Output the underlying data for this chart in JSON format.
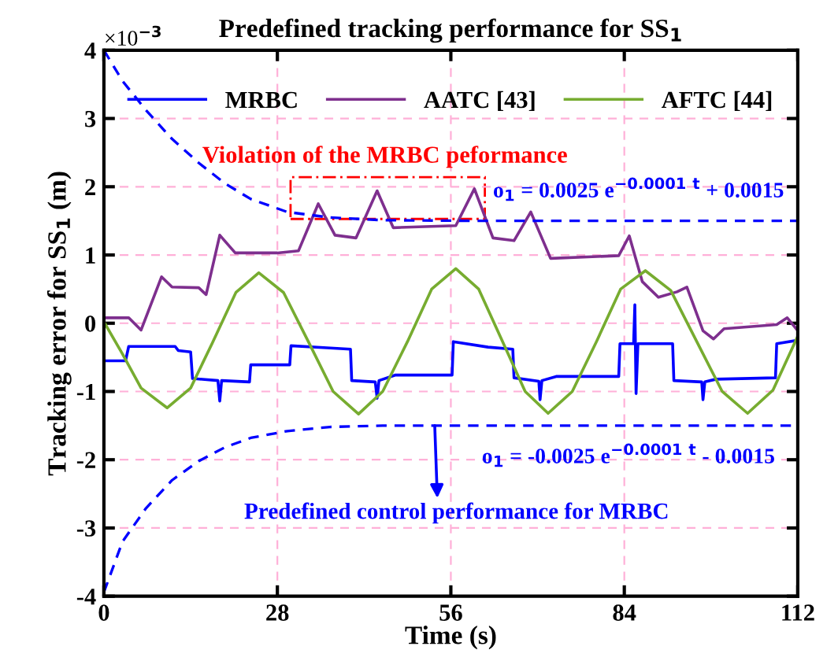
{
  "chart_data": {
    "type": "line",
    "title": "Predefined tracking performance for SS$_{1}$",
    "xlabel": "Time (s)",
    "ylabel": "Tracking error for SS$_{1}$ (m)",
    "xlim": [
      0,
      112
    ],
    "xticks": [
      0,
      28,
      56,
      84,
      112
    ],
    "ylim": [
      -4,
      4
    ],
    "yticks": [
      -4,
      -3,
      -2,
      -1,
      0,
      1,
      2,
      3,
      4
    ],
    "grid": true,
    "legend": "top",
    "marker": "none",
    "series": [
      {
        "name": "MRBC",
        "color": "#0000ff",
        "line_style": "solid",
        "x": [
          0,
          3.5,
          4,
          11.5,
          12,
          14,
          14.3,
          18.4,
          18.7,
          19,
          23.5,
          23.7,
          30,
          30.2,
          36,
          39.8,
          40,
          43.8,
          44.1,
          44.4,
          47,
          56.2,
          56.4,
          62,
          66,
          66.2,
          70.2,
          70.4,
          70.7,
          73,
          83.1,
          83.3,
          85.5,
          85.7,
          85.9,
          86.2,
          91.8,
          92,
          96.5,
          96.7,
          97,
          98.8,
          108.4,
          108.6,
          112
        ],
        "values": [
          -0.55,
          -0.55,
          -0.34,
          -0.34,
          -0.4,
          -0.42,
          -0.81,
          -0.84,
          -1.14,
          -0.84,
          -0.86,
          -0.61,
          -0.61,
          -0.33,
          -0.36,
          -0.38,
          -0.84,
          -0.86,
          -1.1,
          -0.84,
          -0.76,
          -0.76,
          -0.27,
          -0.35,
          -0.38,
          -0.8,
          -0.85,
          -1.12,
          -0.84,
          -0.78,
          -0.78,
          -0.3,
          -0.3,
          0.27,
          -1.03,
          -0.3,
          -0.3,
          -0.84,
          -0.86,
          -1.12,
          -0.86,
          -0.82,
          -0.8,
          -0.3,
          -0.25
        ]
      },
      {
        "name": "AATC [43]",
        "color": "#7e2f8e",
        "line_style": "solid",
        "x": [
          0,
          4,
          6,
          9.3,
          11,
          15.3,
          16.5,
          18.7,
          21.2,
          28,
          31.4,
          34.6,
          37.3,
          40.7,
          44.1,
          46.7,
          56.8,
          59.8,
          62.8,
          66.2,
          68.9,
          72.1,
          83.1,
          84.8,
          86.9,
          89.5,
          92.5,
          94.1,
          96.7,
          98.4,
          100.1,
          108.6,
          110.3,
          112
        ],
        "values": [
          0.08,
          0.08,
          -0.1,
          0.68,
          0.53,
          0.52,
          0.42,
          1.29,
          1.03,
          1.03,
          1.06,
          1.75,
          1.29,
          1.25,
          1.94,
          1.4,
          1.43,
          1.97,
          1.25,
          1.21,
          1.63,
          0.95,
          0.99,
          1.28,
          0.61,
          0.38,
          0.46,
          0.53,
          -0.11,
          -0.23,
          -0.08,
          -0.02,
          0.08,
          -0.11
        ]
      },
      {
        "name": "AFTC [44]",
        "color": "#77ac30",
        "line_style": "solid",
        "x": [
          0,
          3,
          6,
          10.2,
          14,
          17.6,
          21.3,
          25,
          29,
          33,
          37,
          41.1,
          45,
          49,
          52.9,
          56.8,
          60.5,
          64.3,
          68,
          71.7,
          75.6,
          79.5,
          83.4,
          87.4,
          91.5,
          95.7,
          99.8,
          103.9,
          108,
          112
        ],
        "values": [
          0.02,
          -0.45,
          -0.95,
          -1.24,
          -0.95,
          -0.27,
          0.45,
          0.74,
          0.45,
          -0.27,
          -1.0,
          -1.33,
          -1.0,
          -0.27,
          0.5,
          0.8,
          0.5,
          -0.26,
          -1.0,
          -1.32,
          -1.0,
          -0.27,
          0.5,
          0.77,
          0.48,
          -0.27,
          -1.0,
          -1.32,
          -0.98,
          -0.19
        ]
      },
      {
        "color": "#0000ff",
        "line_style": "dashed",
        "x": [
          0,
          3,
          6.8,
          11,
          15.3,
          19.5,
          23.7,
          29.6,
          36.4,
          45,
          60,
          112
        ],
        "values": [
          4,
          3.55,
          3.12,
          2.7,
          2.35,
          2.05,
          1.82,
          1.63,
          1.55,
          1.51,
          1.5,
          1.5
        ]
      },
      {
        "color": "#0000ff",
        "line_style": "dashed",
        "x": [
          0,
          3,
          6.8,
          11,
          15.3,
          19.5,
          23.7,
          29.6,
          36.5,
          45,
          60,
          112
        ],
        "values": [
          -3.94,
          -3.2,
          -2.71,
          -2.3,
          -2.02,
          -1.82,
          -1.68,
          -1.58,
          -1.52,
          -1.5,
          -1.5,
          -1.5
        ]
      }
    ],
    "annotations": [
      "×10$^{−3}$",
      "Violation of the MRBC peformance",
      {
        "text": "o$_{1}$ = 0.0025 e$^{−0.0001}$ $^{t}$ + 0.0015",
        "x": 62.8,
        "y": 1.5
      },
      {
        "text": "o$_{1}$ = -0.0025 e$^{−0.0001}$ $^{t}$ - 0.0015",
        "x": 61,
        "y": -1.5
      },
      {
        "text": "Predefined control performance for MRBC",
        "x": 53.4,
        "y": -1.5
      }
    ]
  }
}
